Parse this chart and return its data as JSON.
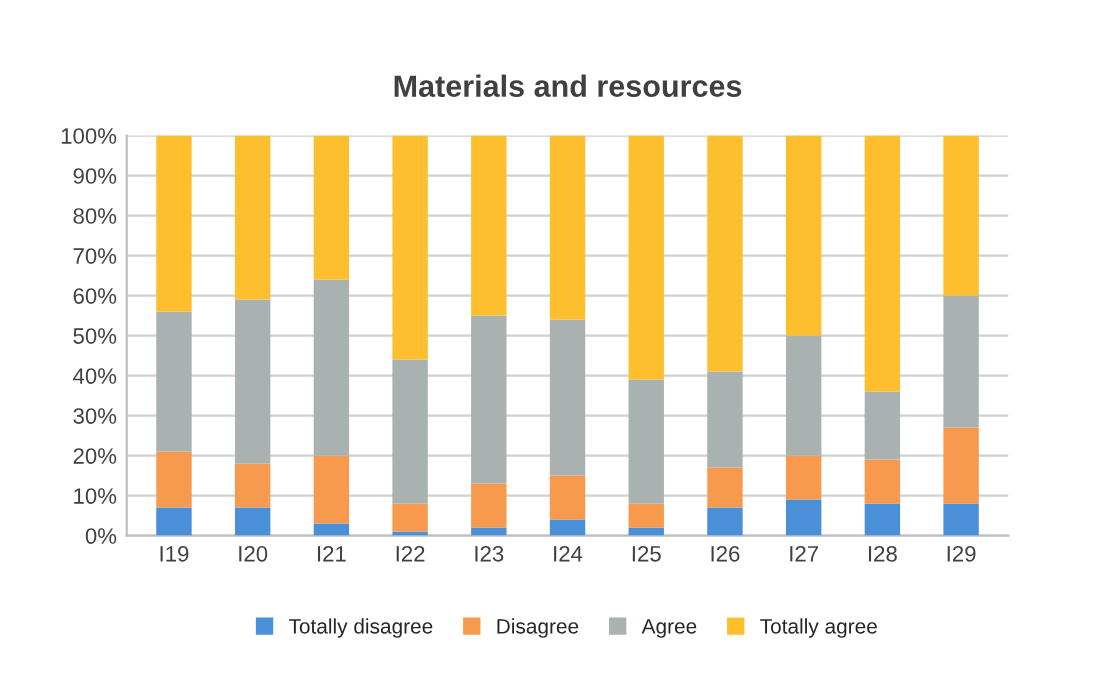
{
  "chart_data": {
    "type": "bar",
    "title": "Materials and resources",
    "stacked": true,
    "categories": [
      "I19",
      "I20",
      "I21",
      "I22",
      "I23",
      "I24",
      "I25",
      "I26",
      "I27",
      "I28",
      "I29"
    ],
    "series": [
      {
        "name": "Totally disagree",
        "color": "#4a90d9",
        "values": [
          7,
          7,
          3,
          1,
          2,
          4,
          2,
          7,
          9,
          8,
          8
        ]
      },
      {
        "name": "Disagree",
        "color": "#f79a4e",
        "values": [
          14,
          11,
          17,
          7,
          11,
          11,
          6,
          10,
          11,
          11,
          19
        ]
      },
      {
        "name": "Agree",
        "color": "#a9b2b0",
        "values": [
          35,
          41,
          44,
          36,
          42,
          39,
          31,
          24,
          30,
          17,
          33
        ]
      },
      {
        "name": "Totally agree",
        "color": "#fdbf2d",
        "values": [
          44,
          41,
          36,
          56,
          45,
          46,
          61,
          59,
          50,
          64,
          40
        ]
      }
    ],
    "ylim": [
      0,
      100
    ],
    "yticks": [
      {
        "value": 0,
        "label": "0%"
      },
      {
        "value": 10,
        "label": "10%"
      },
      {
        "value": 20,
        "label": "20%"
      },
      {
        "value": 30,
        "label": "30%"
      },
      {
        "value": 40,
        "label": "40%"
      },
      {
        "value": 50,
        "label": "50%"
      },
      {
        "value": 60,
        "label": "60%"
      },
      {
        "value": 70,
        "label": "70%"
      },
      {
        "value": 80,
        "label": "80%"
      },
      {
        "value": 90,
        "label": "90%"
      },
      {
        "value": 100,
        "label": "100%"
      }
    ],
    "grid": "y",
    "legend": "bottom"
  }
}
